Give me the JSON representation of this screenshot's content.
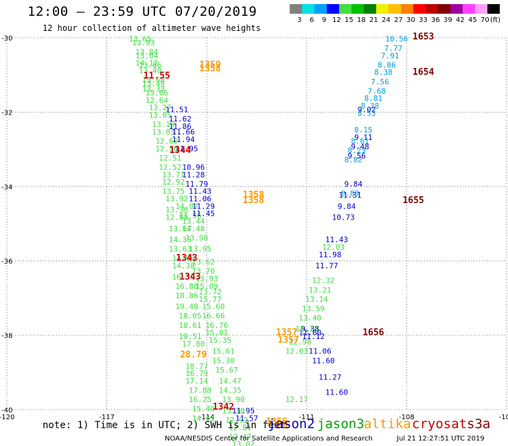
{
  "header": {
    "title": "12:00 – 23:59 UTC 07/20/2019",
    "subtitle": "12 hour collection of altimeter wave heights"
  },
  "color_scale": {
    "unit": "(ft)",
    "swatches": [
      {
        "color": "#808080",
        "label": "3"
      },
      {
        "color": "#00e0e0",
        "label": "6"
      },
      {
        "color": "#00a0ff",
        "label": "9"
      },
      {
        "color": "#0000ff",
        "label": "12"
      },
      {
        "color": "#40e040",
        "label": "15"
      },
      {
        "color": "#00c000",
        "label": "18"
      },
      {
        "color": "#008000",
        "label": "21"
      },
      {
        "color": "#f0f000",
        "label": "24"
      },
      {
        "color": "#ffc000",
        "label": "27"
      },
      {
        "color": "#ff8000",
        "label": "30"
      },
      {
        "color": "#ff0000",
        "label": "33"
      },
      {
        "color": "#c00000",
        "label": "36"
      },
      {
        "color": "#800000",
        "label": "39"
      },
      {
        "color": "#a000a0",
        "label": "42"
      },
      {
        "color": "#ff40ff",
        "label": "45"
      },
      {
        "color": "#ffa0ff",
        "label": "70"
      },
      {
        "color": "#000000",
        "label": ""
      }
    ]
  },
  "notes": {
    "text": "note: 1) Time is in UTC; 2) SWH is in feet"
  },
  "legend": [
    {
      "name": "jason2",
      "color": "#0000cc"
    },
    {
      "name": "jason3",
      "color": "#00a000"
    },
    {
      "name": "altika",
      "color": "#ff9900"
    },
    {
      "name": "cryosat",
      "color": "#cc0000"
    },
    {
      "name": "s3a",
      "color": "#800000"
    }
  ],
  "footer": {
    "center": "NOAA/NESDIS Center for Satellite Applications and Research",
    "date": "Jul 21 12:27:51 UTC 2019"
  },
  "chart_data": {
    "type": "scatter",
    "xlim": [
      -120,
      -105
    ],
    "ylim": [
      -40,
      -30
    ],
    "x_ticks": [
      -120,
      -117,
      -114,
      -111,
      -108,
      -105
    ],
    "y_ticks": [
      -30,
      -32,
      -34,
      -36,
      -38,
      -40
    ],
    "grid": true,
    "series": [
      {
        "name": "jason3",
        "color": "#40e040",
        "points": [
          [
            -116.0,
            -30.1,
            "13.65"
          ],
          [
            -115.9,
            -30.2,
            "13.93"
          ],
          [
            -115.8,
            -30.45,
            "13.84"
          ],
          [
            -115.8,
            -30.55,
            "13.04"
          ],
          [
            -115.8,
            -30.75,
            "14.12"
          ],
          [
            -115.7,
            -30.8,
            "13.86"
          ],
          [
            -115.7,
            -30.95,
            "13.40"
          ],
          [
            -115.6,
            -31.2,
            "13.60"
          ],
          [
            -115.6,
            -31.3,
            "13.49"
          ],
          [
            -115.6,
            -31.45,
            "13.33"
          ],
          [
            -115.5,
            -31.55,
            "15.06"
          ],
          [
            -115.5,
            -31.75,
            "12.64"
          ],
          [
            -115.4,
            -31.95,
            "13.27"
          ],
          [
            -115.4,
            -32.15,
            "13.05"
          ],
          [
            -115.3,
            -32.4,
            "13.19"
          ],
          [
            -115.3,
            -32.6,
            "13.03"
          ],
          [
            -115.2,
            -32.85,
            "12.60"
          ],
          [
            -115.2,
            -33.05,
            "12.56"
          ],
          [
            -115.1,
            -33.3,
            "12.51"
          ],
          [
            -115.1,
            -33.55,
            "12.52"
          ],
          [
            -115.0,
            -33.75,
            "13.71"
          ],
          [
            -115.0,
            -33.95,
            "12.92"
          ],
          [
            -115.0,
            -34.2,
            "13.75"
          ],
          [
            -114.9,
            -34.4,
            "13.92"
          ],
          [
            -114.9,
            -34.7,
            "13.36"
          ],
          [
            -114.9,
            -34.9,
            "12.85"
          ],
          [
            -114.8,
            -35.2,
            "13.67"
          ],
          [
            -114.8,
            -35.5,
            "14.35"
          ],
          [
            -114.8,
            -35.75,
            "13.63"
          ],
          [
            -114.7,
            -36.0,
            "14.06"
          ],
          [
            -114.7,
            -36.2,
            "14.38"
          ],
          [
            -114.7,
            -36.5,
            "16.39"
          ],
          [
            -114.6,
            -36.75,
            "16.88"
          ],
          [
            -114.6,
            -37.0,
            "18.86"
          ],
          [
            -114.6,
            -37.3,
            "19.48"
          ],
          [
            -114.5,
            -37.55,
            "18.05"
          ],
          [
            -114.5,
            -37.8,
            "18.61"
          ],
          [
            -114.5,
            -38.1,
            "19.51"
          ],
          [
            -114.4,
            -38.3,
            "17.80"
          ],
          [
            -114.3,
            -38.9,
            "18.77"
          ],
          [
            -114.3,
            -39.1,
            "16.79"
          ],
          [
            -114.3,
            -39.3,
            "17.14"
          ],
          [
            -114.2,
            -39.55,
            "17.88"
          ],
          [
            -114.2,
            -39.8,
            "16.25"
          ],
          [
            -114.1,
            -40.05,
            "15.40"
          ],
          [
            -114.1,
            -40.3,
            "14.61"
          ]
        ]
      },
      {
        "name": "jason3-b",
        "color": "#40e040",
        "points": [
          [
            -114.6,
            -34.6,
            "14.07"
          ],
          [
            -114.5,
            -34.85,
            "13.56"
          ],
          [
            -114.4,
            -35.0,
            "13.44"
          ],
          [
            -114.4,
            -35.2,
            "14.48"
          ],
          [
            -114.3,
            -35.45,
            "13.98"
          ],
          [
            -114.2,
            -35.75,
            "13.95"
          ],
          [
            -114.1,
            -36.1,
            "13.62"
          ],
          [
            -114.1,
            -36.35,
            "13.70"
          ],
          [
            -114.0,
            -36.55,
            "13.93"
          ],
          [
            -114.0,
            -36.75,
            "15.09"
          ],
          [
            -113.9,
            -36.9,
            "13.72"
          ],
          [
            -113.9,
            -37.1,
            "15.77"
          ],
          [
            -113.8,
            -37.3,
            "15.60"
          ],
          [
            -113.8,
            -37.55,
            "16.66"
          ],
          [
            -113.7,
            -37.8,
            "16.76"
          ],
          [
            -113.7,
            -38.0,
            "15.81"
          ],
          [
            -113.6,
            -38.2,
            "15.35"
          ],
          [
            -113.5,
            -38.5,
            "15.61"
          ],
          [
            -113.5,
            -38.75,
            "15.30"
          ],
          [
            -113.4,
            -39.0,
            "15.67"
          ],
          [
            -113.3,
            -39.3,
            "14.47"
          ],
          [
            -113.3,
            -39.55,
            "14.35"
          ],
          [
            -113.2,
            -39.8,
            "13.90"
          ],
          [
            -113.2,
            -40.1,
            "13.30"
          ],
          [
            -113.1,
            -40.35,
            "12.92"
          ],
          [
            -113.0,
            -40.55,
            "12.81"
          ],
          [
            -113.0,
            -40.8,
            "12.47"
          ],
          [
            -112.9,
            -41.0,
            "13.02"
          ]
        ]
      },
      {
        "name": "jason2",
        "color": "#0000cc",
        "points": [
          [
            -114.9,
            -32.0,
            "11.51"
          ],
          [
            -114.8,
            -32.25,
            "11.62"
          ],
          [
            -114.8,
            -32.45,
            "11.86"
          ],
          [
            -114.7,
            -32.6,
            "11.66"
          ],
          [
            -114.7,
            -32.8,
            "11.94"
          ],
          [
            -114.6,
            -33.05,
            "11.95"
          ],
          [
            -114.4,
            -33.55,
            "10.96"
          ],
          [
            -114.4,
            -33.75,
            "11.28"
          ],
          [
            -114.3,
            -34.0,
            "11.79"
          ],
          [
            -114.2,
            -34.2,
            "11.43"
          ],
          [
            -114.2,
            -34.4,
            "11.06"
          ],
          [
            -114.1,
            -34.6,
            "11.29"
          ],
          [
            -114.1,
            -34.8,
            "11.45"
          ],
          [
            -112.9,
            -40.1,
            "11.95"
          ],
          [
            -112.8,
            -40.3,
            "11.57"
          ]
        ]
      },
      {
        "name": "jason2-asc",
        "color": "#0000cc",
        "points": [
          [
            -110.1,
            -39.6,
            "11.60"
          ],
          [
            -110.3,
            -39.2,
            "11.27"
          ],
          [
            -110.5,
            -38.75,
            "11.60"
          ],
          [
            -110.6,
            -38.5,
            "11.06"
          ],
          [
            -110.8,
            -38.1,
            "11.12"
          ],
          [
            -110.9,
            -37.9,
            "9.38"
          ]
        ]
      },
      {
        "name": "jason2-mid",
        "color": "#0000cc",
        "points": [
          [
            -109.2,
            -32.0,
            "9.02"
          ],
          [
            -109.3,
            -32.75,
            "9.11"
          ],
          [
            -109.4,
            -33.0,
            "9.48"
          ],
          [
            -109.5,
            -33.25,
            "9.56"
          ],
          [
            -109.6,
            -34.0,
            "9.84"
          ],
          [
            -109.7,
            -34.3,
            "11.31"
          ],
          [
            -109.8,
            -34.6,
            "9.84"
          ],
          [
            -109.9,
            -34.9,
            "10.73"
          ],
          [
            -110.1,
            -35.5,
            "11.43"
          ],
          [
            -110.3,
            -35.9,
            "11.98"
          ],
          [
            -110.4,
            -36.2,
            "11.77"
          ],
          [
            -110.9,
            -38.0,
            "11.60"
          ]
        ]
      },
      {
        "name": "jason2-cyan",
        "color": "#00a0e0",
        "points": [
          [
            -108.3,
            -30.1,
            "10.56"
          ],
          [
            -108.4,
            -30.35,
            "7.77"
          ],
          [
            -108.5,
            -30.55,
            "7.91"
          ],
          [
            -108.6,
            -30.8,
            "8.86"
          ],
          [
            -108.7,
            -31.0,
            "8.38"
          ],
          [
            -108.8,
            -31.25,
            "7.56"
          ],
          [
            -108.9,
            -31.5,
            "7.68"
          ],
          [
            -109.0,
            -31.7,
            "8.81"
          ],
          [
            -109.1,
            -31.9,
            "8.38"
          ],
          [
            -109.2,
            -32.1,
            "8.53"
          ],
          [
            -109.3,
            -32.55,
            "8.15"
          ],
          [
            -109.4,
            -32.85,
            "8.61"
          ],
          [
            -109.5,
            -33.1,
            "8.23"
          ],
          [
            -109.6,
            -33.35,
            "8.82"
          ],
          [
            -109.7,
            -34.25,
            "8.88"
          ]
        ]
      },
      {
        "name": "jason3-asc",
        "color": "#40e040",
        "points": [
          [
            -110.2,
            -35.7,
            "12.03"
          ],
          [
            -110.5,
            -36.6,
            "12.32"
          ],
          [
            -110.6,
            -36.85,
            "13.21"
          ],
          [
            -110.7,
            -37.1,
            "13.14"
          ],
          [
            -110.8,
            -37.35,
            "13.59"
          ],
          [
            -110.9,
            -37.6,
            "13.40"
          ],
          [
            -111.0,
            -37.9,
            "12.13"
          ],
          [
            -111.2,
            -38.25,
            "12.98"
          ],
          [
            -111.3,
            -38.5,
            "12.03"
          ],
          [
            -111.3,
            -39.8,
            "12.17"
          ]
        ]
      },
      {
        "name": "altika",
        "color": "#ff9900",
        "points": [
          [
            -113.9,
            -30.8,
            "1359"
          ],
          [
            -113.9,
            -30.9,
            "1358"
          ],
          [
            -112.6,
            -34.3,
            "1358"
          ],
          [
            -112.6,
            -34.45,
            "1358"
          ],
          [
            -111.6,
            -38.0,
            "1357"
          ],
          [
            -111.55,
            -38.2,
            "1357"
          ],
          [
            -111.9,
            -40.4,
            "1356"
          ],
          [
            -111.8,
            -40.5,
            "1356"
          ],
          [
            -114.4,
            -38.6,
            "28.79"
          ]
        ]
      },
      {
        "name": "cryosat",
        "color": "#cc0000",
        "points": [
          [
            -115.5,
            -31.1,
            "11.55"
          ],
          [
            -114.8,
            -33.1,
            "1344"
          ],
          [
            -114.6,
            -36.0,
            "1343"
          ],
          [
            -114.5,
            -36.5,
            "1343"
          ],
          [
            -113.5,
            -40.0,
            "1342"
          ]
        ]
      },
      {
        "name": "s3a",
        "color": "#800000",
        "points": [
          [
            -107.5,
            -30.05,
            "1653"
          ],
          [
            -107.5,
            -31.0,
            "1654"
          ],
          [
            -107.8,
            -34.45,
            "1655"
          ],
          [
            -109.0,
            -38.0,
            "1656"
          ]
        ]
      }
    ]
  }
}
